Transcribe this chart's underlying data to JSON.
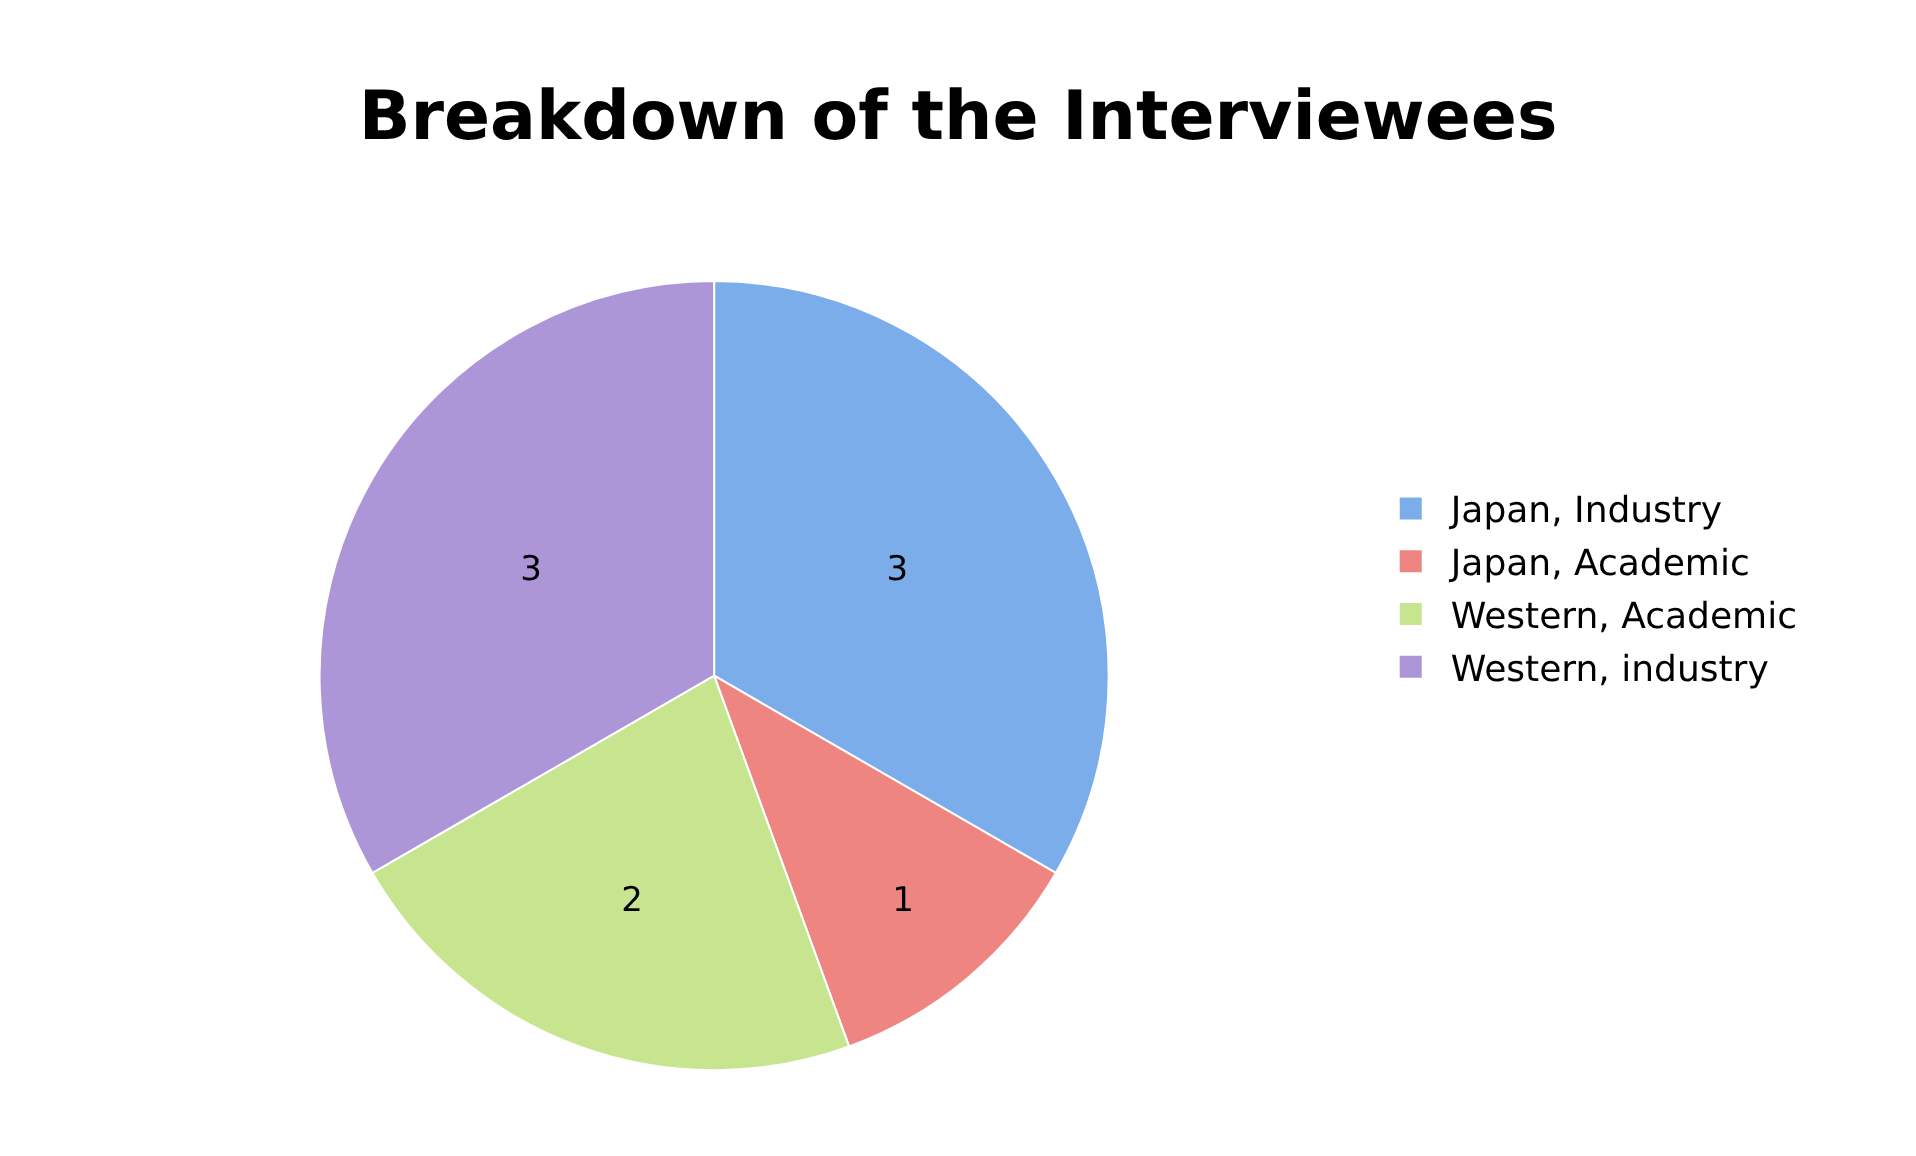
{
  "chart_data": {
    "type": "pie",
    "title": "Breakdown of the Interviewees",
    "categories": [
      "Japan, Industry",
      "Japan, Academic",
      "Western, Academic",
      "Western, industry"
    ],
    "values": [
      3,
      1,
      2,
      3
    ],
    "colors": [
      "#7badea",
      "#ef8580",
      "#c6e58e",
      "#ad96d8"
    ],
    "data_labels": true,
    "legend": "right"
  }
}
